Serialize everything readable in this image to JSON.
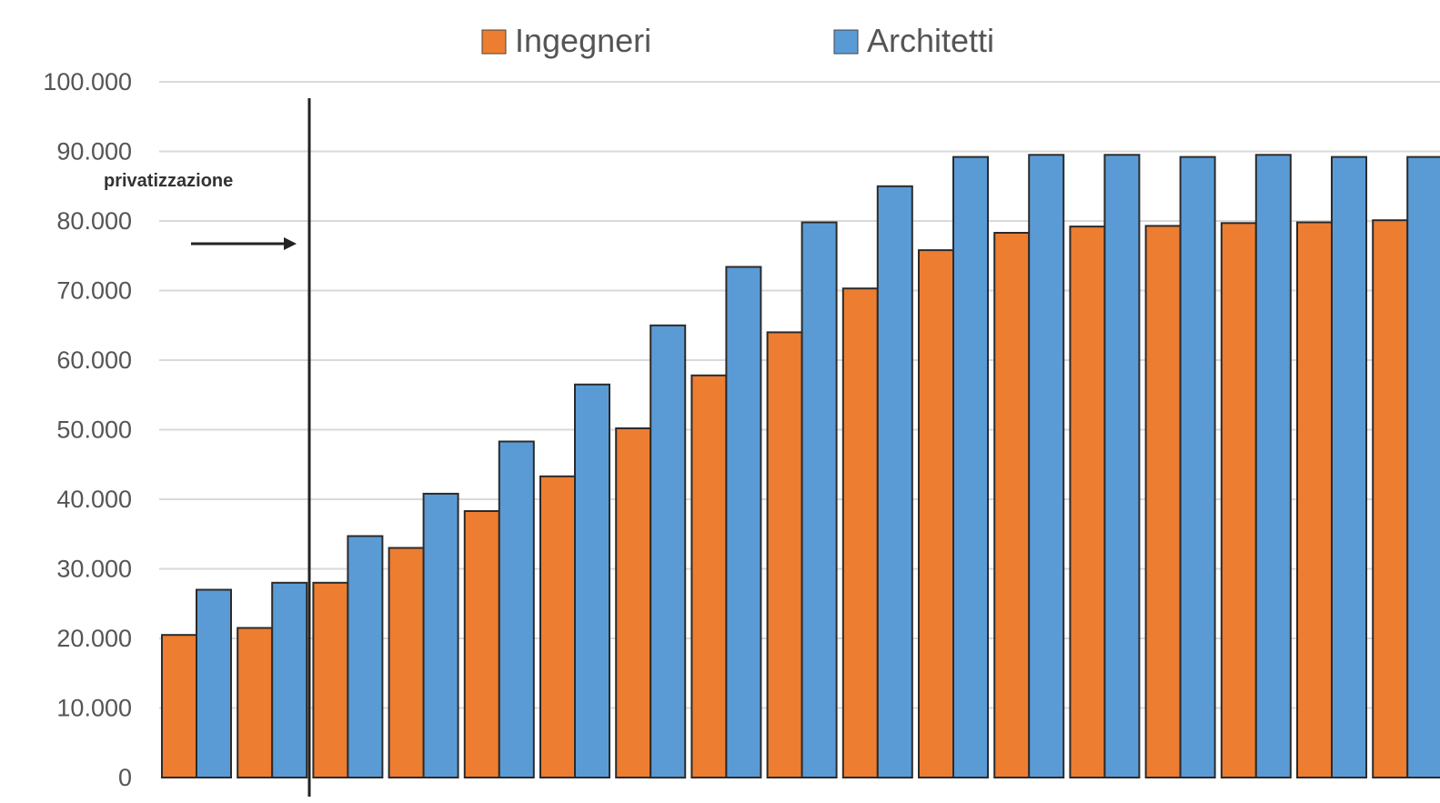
{
  "chart_data": {
    "type": "bar",
    "title": "",
    "xlabel": "",
    "ylabel": "",
    "ylim": [
      0,
      100000
    ],
    "y_ticks": [
      "0",
      "10.000",
      "20.000",
      "30.000",
      "40.000",
      "50.000",
      "60.000",
      "70.000",
      "80.000",
      "90.000",
      "100.000"
    ],
    "grid": true,
    "legend_placement": "top",
    "series": [
      {
        "name": "Ingegneri",
        "color": "#ed7d31",
        "values": [
          20500,
          21500,
          28000,
          33000,
          38300,
          43300,
          50200,
          57800,
          64000,
          70300,
          75800,
          78300,
          79200,
          79300,
          79700,
          79800,
          80100
        ]
      },
      {
        "name": "Architetti",
        "color": "#5b9bd5",
        "values": [
          27000,
          28000,
          34700,
          40800,
          48300,
          56500,
          65000,
          73400,
          79800,
          85000,
          89200,
          89500,
          89500,
          89200,
          89500,
          89200,
          89200
        ]
      }
    ],
    "annotations": [
      {
        "label": "privatizzazione",
        "marker": "arrow-and-vertical-line",
        "after_group": 2
      }
    ]
  }
}
